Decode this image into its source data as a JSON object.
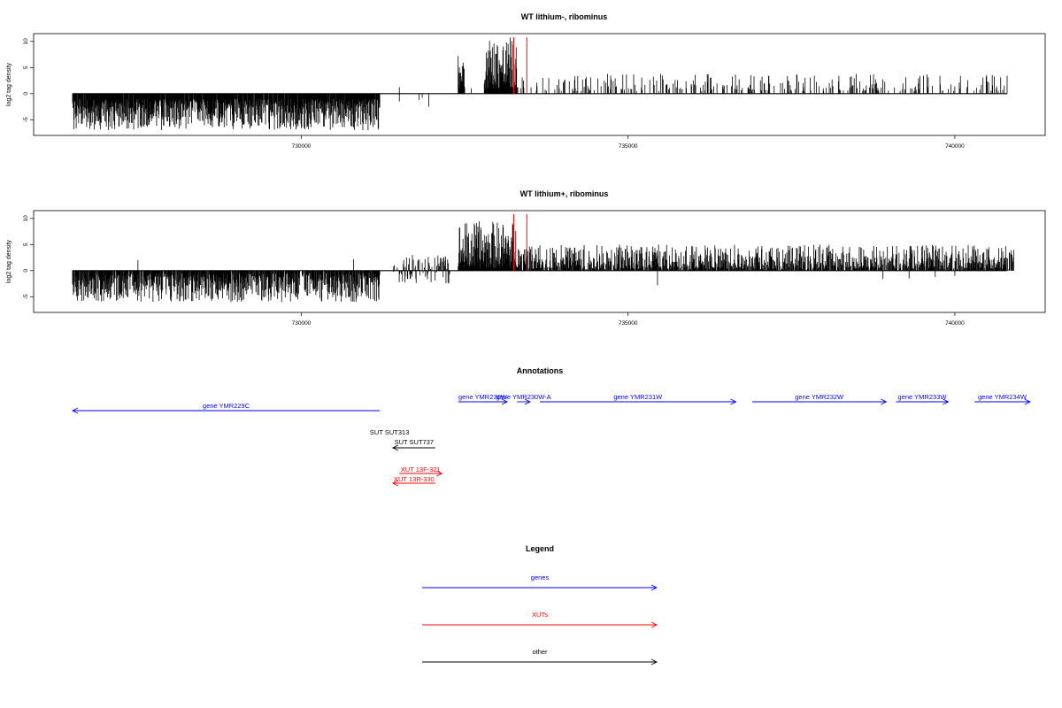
{
  "colors": {
    "gene": "#0000ff",
    "xut": "#ff0000",
    "other": "#000000",
    "marker": "#ff0000",
    "bars": "#000000"
  },
  "chart_data": [
    {
      "type": "bar",
      "title": "WT lithium-, ribominus",
      "ylabel": "log2 tag density",
      "xlim": [
        726300,
        741200
      ],
      "ylim": [
        -8,
        11.5
      ],
      "yticks": [
        -5,
        0,
        5,
        10
      ],
      "xticks": [
        730000,
        735000,
        740000
      ],
      "markers_x": [
        733250,
        733450
      ],
      "segments": [
        {
          "from": 726500,
          "to": 731200,
          "min": -7,
          "max": -1,
          "density": 0.95
        },
        {
          "from": 731500,
          "to": 731500,
          "min": 0,
          "max": 1.5,
          "density": 1
        },
        {
          "from": 732400,
          "to": 732500,
          "min": 1,
          "max": 9.5,
          "density": 1
        },
        {
          "from": 732800,
          "to": 733300,
          "min": 1,
          "max": 11,
          "density": 1
        },
        {
          "from": 733300,
          "to": 740800,
          "min": 0.5,
          "max": 3.8,
          "density": 0.22
        }
      ],
      "extra": [
        {
          "x": 731500,
          "y": -1.5
        },
        {
          "x": 731800,
          "y": -1.2
        },
        {
          "x": 731850,
          "y": -0.8
        },
        {
          "x": 731950,
          "y": -2.5
        },
        {
          "x": 732600,
          "y": 1.0
        },
        {
          "x": 738400,
          "y": 3.2
        }
      ]
    },
    {
      "type": "bar",
      "title": "WT lithium+, ribominus",
      "ylabel": "log2 tag density",
      "xlim": [
        726300,
        741200
      ],
      "ylim": [
        -8,
        11.5
      ],
      "yticks": [
        -5,
        0,
        5,
        10
      ],
      "xticks": [
        730000,
        735000,
        740000
      ],
      "markers_x": [
        733250,
        733450
      ],
      "segments": [
        {
          "from": 726500,
          "to": 731200,
          "min": -6,
          "max": -0.5,
          "density": 0.85
        },
        {
          "from": 731400,
          "to": 732300,
          "min": -2.5,
          "max": 3,
          "density": 0.5
        },
        {
          "from": 732400,
          "to": 733300,
          "min": 0.5,
          "max": 9.5,
          "density": 1
        },
        {
          "from": 733300,
          "to": 740900,
          "min": 0.3,
          "max": 5,
          "density": 0.75
        }
      ],
      "extra": [
        {
          "x": 727500,
          "y": 2.0
        },
        {
          "x": 730800,
          "y": 2.2
        },
        {
          "x": 731700,
          "y": 3.0
        },
        {
          "x": 735450,
          "y": -2.8
        },
        {
          "x": 738900,
          "y": -1.6
        },
        {
          "x": 739300,
          "y": -1.5
        },
        {
          "x": 739700,
          "y": -1.2
        },
        {
          "x": 740000,
          "y": -1.0
        }
      ]
    },
    {
      "type": "annotation-track",
      "title": "Annotations",
      "xlim": [
        726300,
        741200
      ],
      "features": [
        {
          "label": "gene YMR229C",
          "start": 726500,
          "end": 731200,
          "strand": "-",
          "row": 1,
          "kind": "gene"
        },
        {
          "label": "gene YMR230W",
          "start": 732400,
          "end": 733150,
          "strand": "+",
          "row": 0,
          "kind": "gene"
        },
        {
          "label": "gene YMR230W-A",
          "start": 733300,
          "end": 733500,
          "strand": "+",
          "row": 0,
          "kind": "gene"
        },
        {
          "label": "gene YMR231W",
          "start": 733650,
          "end": 736650,
          "strand": "+",
          "row": 0,
          "kind": "gene"
        },
        {
          "label": "gene YMR232W",
          "start": 736900,
          "end": 738950,
          "strand": "+",
          "row": 0,
          "kind": "gene"
        },
        {
          "label": "gene YMR233W",
          "start": 739100,
          "end": 739900,
          "strand": "+",
          "row": 0,
          "kind": "gene"
        },
        {
          "label": "gene YMR234W",
          "start": 740300,
          "end": 741150,
          "strand": "+",
          "row": 0,
          "kind": "gene"
        },
        {
          "label": "SUT SUT313",
          "start": 731350,
          "end": 731350,
          "strand": "none",
          "row": 2,
          "kind": "other"
        },
        {
          "label": "SUT SUT737",
          "start": 731400,
          "end": 732050,
          "strand": "-",
          "row": 3,
          "kind": "other"
        },
        {
          "label": "XUT 13F-321",
          "start": 731500,
          "end": 732150,
          "strand": "+",
          "row": 4,
          "kind": "xut"
        },
        {
          "label": "XUT 13R-330",
          "start": 731400,
          "end": 732050,
          "strand": "-",
          "row": 5,
          "kind": "xut"
        }
      ]
    },
    {
      "type": "legend",
      "title": "Legend",
      "entries": [
        {
          "label": "genes",
          "kind": "gene"
        },
        {
          "label": "XUTs",
          "kind": "xut"
        },
        {
          "label": "other",
          "kind": "other"
        }
      ]
    }
  ]
}
